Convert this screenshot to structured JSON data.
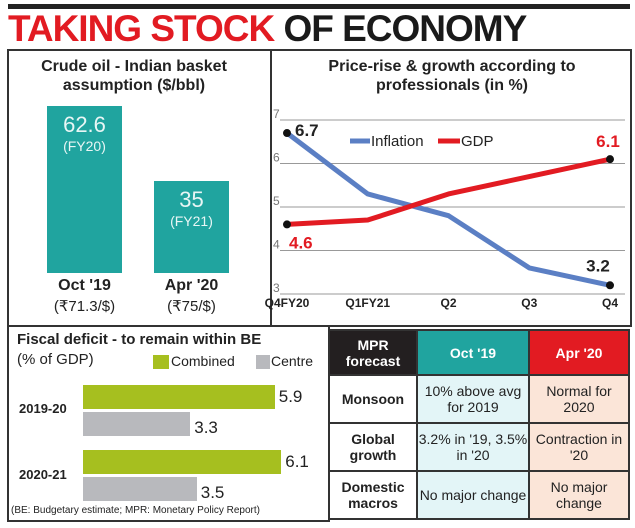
{
  "title": {
    "part1": "TAKING STOCK",
    "part2": "OF ECONOMY"
  },
  "colors": {
    "teal": "#20a49f",
    "red": "#e21b22",
    "inflation": "#5b7fc4",
    "gdp": "#e21b22",
    "combined": "#a6bf1f",
    "centre": "#b8b9bd"
  },
  "chart_data": [
    {
      "type": "bar",
      "title": "Crude oil - Indian basket assumption ($/bbl)",
      "categories": [
        "Oct '19",
        "Apr '20"
      ],
      "sublabels": [
        "(₹71.3/$)",
        "(₹75/$)"
      ],
      "values": [
        62.6,
        35
      ],
      "value_labels": [
        "62.6",
        "35"
      ],
      "fy_labels": [
        "(FY20)",
        "(FY21)"
      ]
    },
    {
      "type": "line",
      "title": "Price-rise & growth according to professionals (in %)",
      "x": [
        "Q4FY20",
        "Q1FY21",
        "Q2",
        "Q3",
        "Q4"
      ],
      "yticks": [
        "3",
        "4",
        "5",
        "6",
        "7"
      ],
      "ylim": [
        3,
        7
      ],
      "series": [
        {
          "name": "Inflation",
          "values": [
            6.7,
            5.3,
            4.8,
            3.6,
            3.2
          ]
        },
        {
          "name": "GDP",
          "values": [
            4.6,
            4.7,
            5.3,
            5.7,
            6.1
          ]
        }
      ],
      "annotations": [
        "6.7",
        "3.2",
        "4.6",
        "6.1"
      ]
    },
    {
      "type": "bar",
      "orientation": "horizontal",
      "title": "Fiscal deficit - to remain within BE",
      "subtitle": "(% of GDP)",
      "categories": [
        "2019-20",
        "2020-21"
      ],
      "series": [
        {
          "name": "Combined",
          "values": [
            5.9,
            6.1
          ],
          "labels": [
            "5.9",
            "6.1"
          ]
        },
        {
          "name": "Centre",
          "values": [
            3.3,
            3.5
          ],
          "labels": [
            "3.3",
            "3.5"
          ]
        }
      ],
      "footnote": "(BE: Budgetary estimate; MPR: Monetary Policy Report)"
    },
    {
      "type": "table",
      "headers": [
        "MPR forecast",
        "Oct '19",
        "Apr '20"
      ],
      "rows": [
        [
          "Monsoon",
          "10% above avg for 2019",
          "Normal for 2020"
        ],
        [
          "Global growth",
          "3.2% in '19, 3.5% in '20",
          "Contraction in '20"
        ],
        [
          "Domestic macros",
          "No major change",
          "No major change"
        ]
      ]
    }
  ]
}
